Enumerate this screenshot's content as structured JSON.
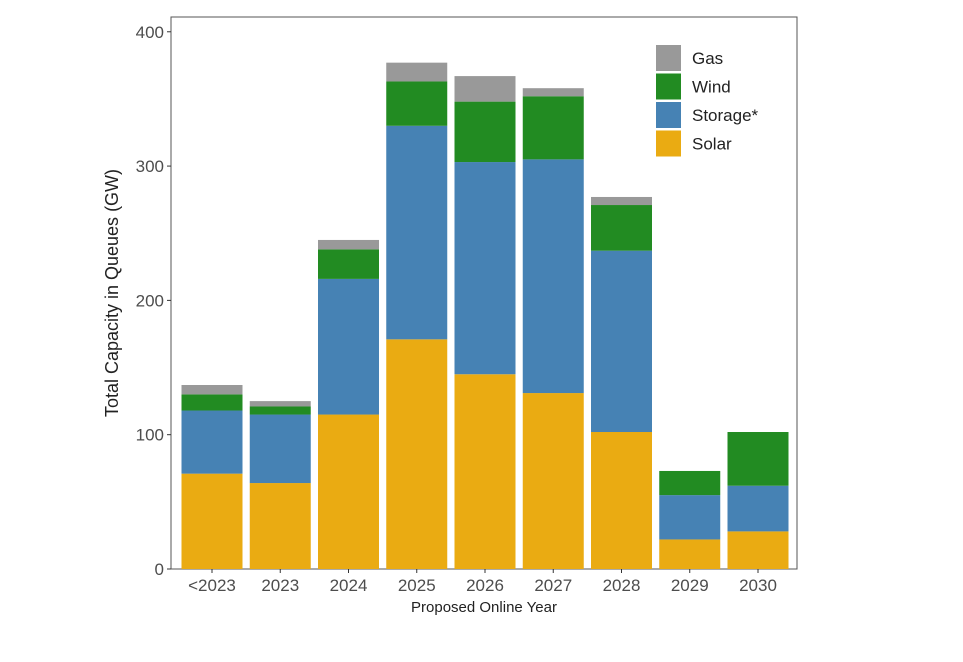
{
  "chart_data": {
    "type": "bar",
    "stacked": true,
    "title": "",
    "xlabel": "Proposed Online Year",
    "ylabel": "Total Capacity in Queues (GW)",
    "ylim": [
      0,
      411
    ],
    "yticks": [
      0,
      100,
      200,
      300,
      400
    ],
    "grid": false,
    "legend_position": "top-right",
    "categories": [
      "<2023",
      "2023",
      "2024",
      "2025",
      "2026",
      "2027",
      "2028",
      "2029",
      "2030"
    ],
    "series": [
      {
        "name": "Solar",
        "color": "#EAAB12",
        "values": [
          71,
          64,
          115,
          171,
          145,
          131,
          102,
          22,
          28
        ]
      },
      {
        "name": "Storage*",
        "color": "#4682B4",
        "values": [
          47,
          51,
          101,
          159,
          158,
          174,
          135,
          33,
          34
        ]
      },
      {
        "name": "Wind",
        "color": "#228B22",
        "values": [
          12,
          6,
          22,
          33,
          45,
          47,
          34,
          18,
          40
        ]
      },
      {
        "name": "Gas",
        "color": "#999999",
        "values": [
          7,
          4,
          7,
          14,
          19,
          6,
          6,
          0,
          0
        ]
      }
    ]
  }
}
